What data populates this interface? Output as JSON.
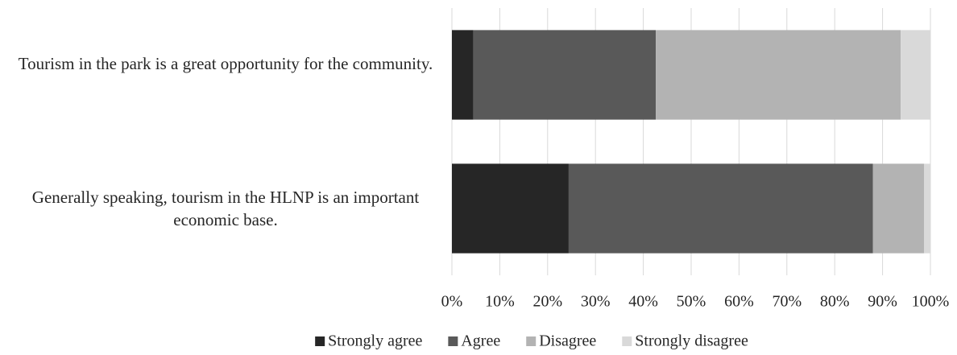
{
  "chart_data": {
    "type": "stacked_barh",
    "categories": [
      "Tourism in the park is a great opportunity for the community.",
      "Generally speaking, tourism in the HLNP is an important economic base."
    ],
    "series": [
      {
        "name": "Strongly agree",
        "color": "#262626",
        "values": [
          4.5,
          24.4
        ]
      },
      {
        "name": "Agree",
        "color": "#595959",
        "values": [
          38.1,
          63.6
        ]
      },
      {
        "name": "Disagree",
        "color": "#b3b3b3",
        "values": [
          51.2,
          10.7
        ]
      },
      {
        "name": "Strongly disagree",
        "color": "#d9d9d9",
        "values": [
          6.2,
          1.3
        ]
      }
    ],
    "xlim": [
      0,
      100
    ],
    "xticks": [
      {
        "value": 0,
        "label": "0%"
      },
      {
        "value": 10,
        "label": "10%"
      },
      {
        "value": 20,
        "label": "20%"
      },
      {
        "value": 30,
        "label": "30%"
      },
      {
        "value": 40,
        "label": "40%"
      },
      {
        "value": 50,
        "label": "50%"
      },
      {
        "value": 60,
        "label": "60%"
      },
      {
        "value": 70,
        "label": "70%"
      },
      {
        "value": 80,
        "label": "80%"
      },
      {
        "value": 90,
        "label": "90%"
      },
      {
        "value": 100,
        "label": "100%"
      }
    ],
    "grid": true,
    "legend": "bottom"
  }
}
